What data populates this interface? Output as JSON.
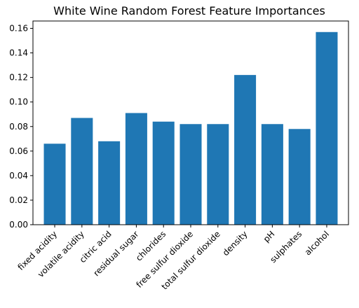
{
  "chart_data": {
    "type": "bar",
    "title": "White Wine Random Forest Feature Importances",
    "xlabel": "",
    "ylabel": "",
    "categories": [
      "fixed acidity",
      "volatile acidity",
      "citric acid",
      "residual sugar",
      "chlorides",
      "free sulfur dioxide",
      "total sulfur dioxide",
      "density",
      "pH",
      "sulphates",
      "alcohol"
    ],
    "values": [
      0.066,
      0.087,
      0.068,
      0.091,
      0.084,
      0.082,
      0.082,
      0.122,
      0.082,
      0.078,
      0.157
    ],
    "ylim": [
      0,
      0.166
    ],
    "yticks": [
      "0.00",
      "0.02",
      "0.04",
      "0.06",
      "0.08",
      "0.10",
      "0.12",
      "0.14",
      "0.16"
    ],
    "grid": false,
    "bar_color": "#1f77b4"
  }
}
